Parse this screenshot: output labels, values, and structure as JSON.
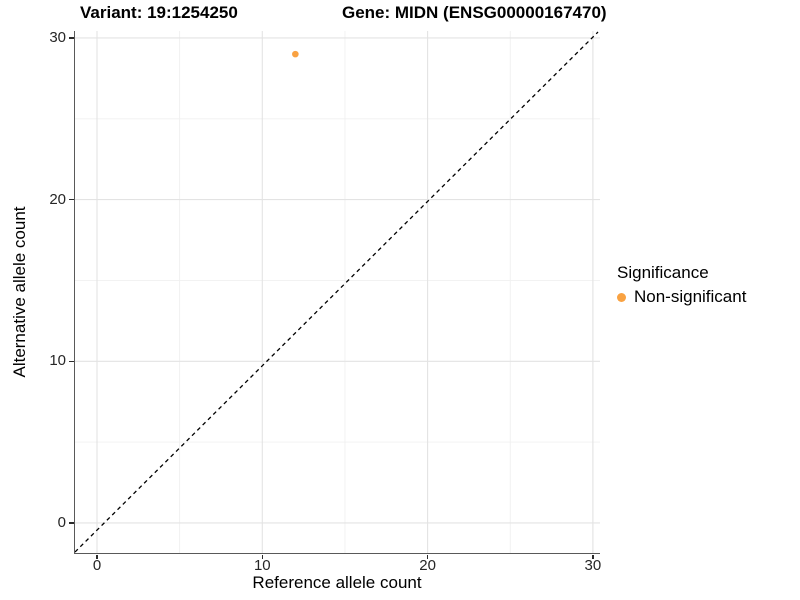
{
  "header": {
    "title_left": "Variant: 19:1254250",
    "title_right": "Gene: MIDN (ENSG00000167470)"
  },
  "chart_data": {
    "type": "scatter",
    "title_left": "Variant: 19:1254250",
    "title_right": "Gene: MIDN (ENSG00000167470)",
    "xlabel": "Reference allele count",
    "ylabel": "Alternative allele count",
    "x_ticks": [
      0,
      10,
      20,
      30
    ],
    "y_ticks": [
      0,
      10,
      20,
      30
    ],
    "x_minor_ticks": [
      5,
      15,
      25
    ],
    "y_minor_ticks": [
      5,
      15,
      25
    ],
    "xlim": [
      -1.33,
      30.43
    ],
    "ylim": [
      -1.86,
      30.43
    ],
    "grid": true,
    "legend_position": "right",
    "legend": {
      "title": "Significance",
      "items": [
        {
          "label": "Non-significant",
          "color": "#F9A242"
        }
      ]
    },
    "reference_line": {
      "type": "identity",
      "style": "dashed",
      "color": "#000000"
    },
    "series": [
      {
        "name": "Non-significant",
        "color": "#F9A242",
        "points": [
          {
            "x": 12,
            "y": 29
          }
        ]
      }
    ]
  },
  "colors": {
    "grid_major": "#E3E3E3",
    "grid_minor": "#F0F0F0",
    "axis_line": "#595959",
    "tick_mark": "#2B2B2B",
    "tick_text": "#262626",
    "text": "#000000",
    "point": "#F9A242",
    "background": "#FFFFFF"
  }
}
